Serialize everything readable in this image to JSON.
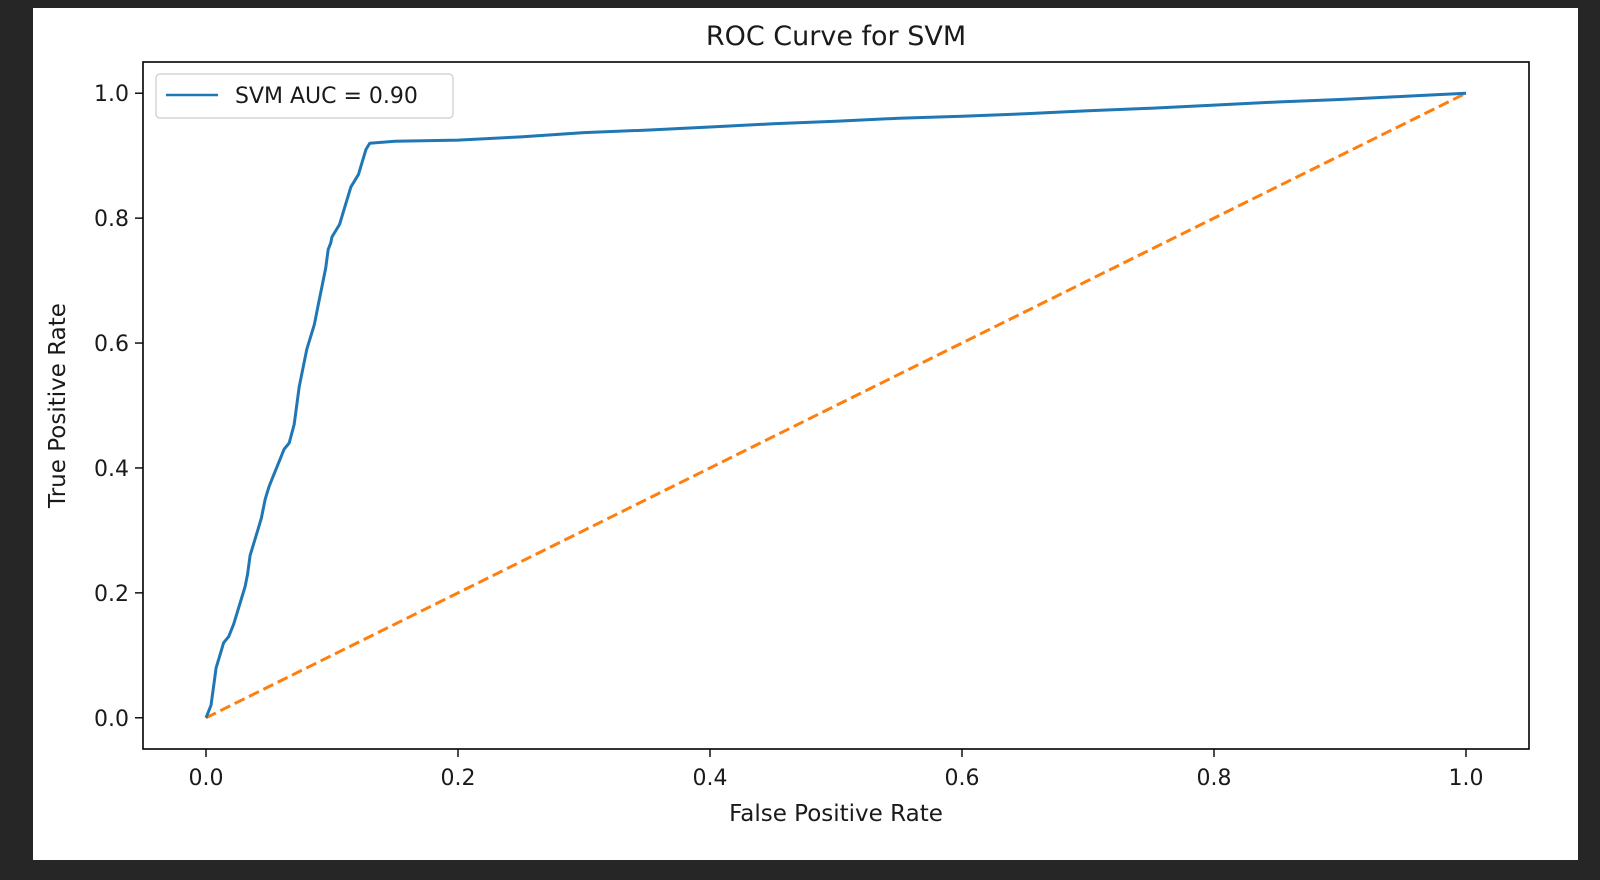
{
  "chart_data": {
    "type": "line",
    "title": "ROC Curve for SVM",
    "xlabel": "False Positive Rate",
    "ylabel": "True Positive Rate",
    "xlim": [
      -0.05,
      1.05
    ],
    "ylim": [
      -0.05,
      1.05
    ],
    "xticks": [
      0.0,
      0.2,
      0.4,
      0.6,
      0.8,
      1.0
    ],
    "yticks": [
      0.0,
      0.2,
      0.4,
      0.6,
      0.8,
      1.0
    ],
    "xtick_labels": [
      "0.0",
      "0.2",
      "0.4",
      "0.6",
      "0.8",
      "1.0"
    ],
    "ytick_labels": [
      "0.0",
      "0.2",
      "0.4",
      "0.6",
      "0.8",
      "1.0"
    ],
    "grid": false,
    "legend_position": "top-left",
    "series": [
      {
        "name": "SVM AUC = 0.90",
        "color": "#1f77b4",
        "style": "solid",
        "x": [
          0.0,
          0.004,
          0.006,
          0.008,
          0.011,
          0.014,
          0.018,
          0.022,
          0.025,
          0.028,
          0.031,
          0.033,
          0.035,
          0.038,
          0.041,
          0.044,
          0.047,
          0.05,
          0.054,
          0.058,
          0.062,
          0.066,
          0.07,
          0.072,
          0.074,
          0.077,
          0.08,
          0.083,
          0.086,
          0.089,
          0.092,
          0.095,
          0.097,
          0.099,
          0.1,
          0.103,
          0.106,
          0.109,
          0.112,
          0.115,
          0.118,
          0.121,
          0.124,
          0.127,
          0.13,
          0.15,
          0.2,
          0.25,
          0.3,
          0.35,
          0.4,
          0.45,
          0.5,
          0.55,
          0.6,
          0.65,
          0.7,
          0.75,
          0.8,
          0.85,
          0.9,
          0.95,
          1.0
        ],
        "y": [
          0.0,
          0.02,
          0.05,
          0.08,
          0.1,
          0.12,
          0.13,
          0.15,
          0.17,
          0.19,
          0.21,
          0.23,
          0.26,
          0.28,
          0.3,
          0.32,
          0.35,
          0.37,
          0.39,
          0.41,
          0.43,
          0.44,
          0.47,
          0.5,
          0.53,
          0.56,
          0.59,
          0.61,
          0.63,
          0.66,
          0.69,
          0.72,
          0.75,
          0.76,
          0.77,
          0.78,
          0.79,
          0.81,
          0.83,
          0.85,
          0.86,
          0.87,
          0.89,
          0.91,
          0.92,
          0.923,
          0.925,
          0.93,
          0.937,
          0.941,
          0.946,
          0.951,
          0.955,
          0.96,
          0.963,
          0.967,
          0.972,
          0.976,
          0.981,
          0.986,
          0.99,
          0.995,
          1.0
        ]
      },
      {
        "name": "",
        "color": "#ff7f0e",
        "style": "dashed",
        "x": [
          0.0,
          1.0
        ],
        "y": [
          0.0,
          1.0
        ]
      }
    ]
  }
}
